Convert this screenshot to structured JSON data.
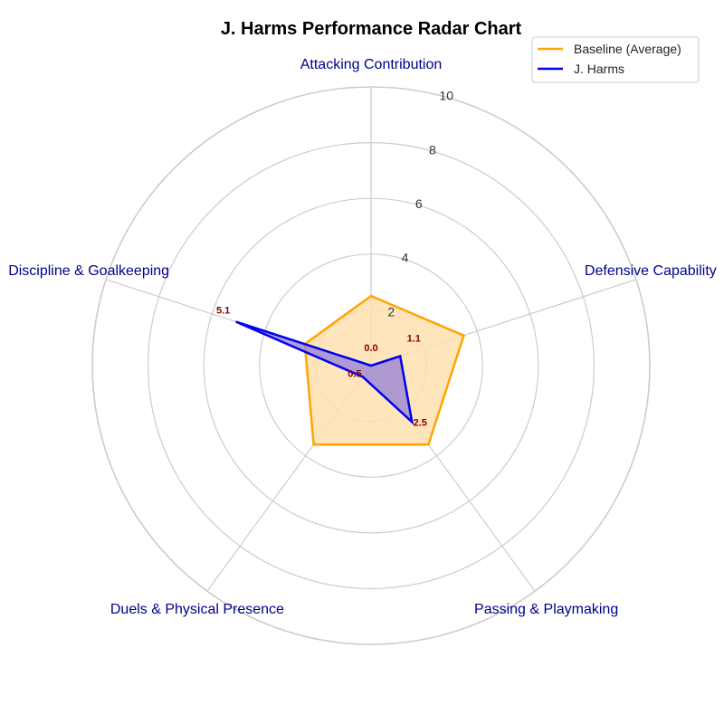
{
  "chart_data": {
    "type": "radar",
    "title": "J. Harms Performance Radar Chart",
    "categories": [
      "Attacking Contribution",
      "Defensive Capability",
      "Passing & Playmaking",
      "Duels & Physical Presence",
      "Discipline & Goalkeeping"
    ],
    "rlim": [
      0,
      10
    ],
    "rticks": [
      2,
      4,
      6,
      8,
      10
    ],
    "grid": true,
    "legend": "top-right",
    "series": [
      {
        "name": "Baseline (Average)",
        "values": [
          2.5,
          3.5,
          3.5,
          3.5,
          2.5
        ],
        "color": "#FFA500",
        "fill": "#FFE0B0"
      },
      {
        "name": "J. Harms",
        "values": [
          0.0,
          1.1,
          2.5,
          0.5,
          5.1
        ],
        "color": "#0000EE",
        "fill": "#9A86D6",
        "labels": [
          "0.0",
          "1.1",
          "2.5",
          "0.5",
          "5.1"
        ]
      }
    ],
    "colors": {
      "title": "#00008B",
      "axis_label": "#00008B",
      "data_label": "#8B0000",
      "grid": "#CCCCCC"
    }
  }
}
